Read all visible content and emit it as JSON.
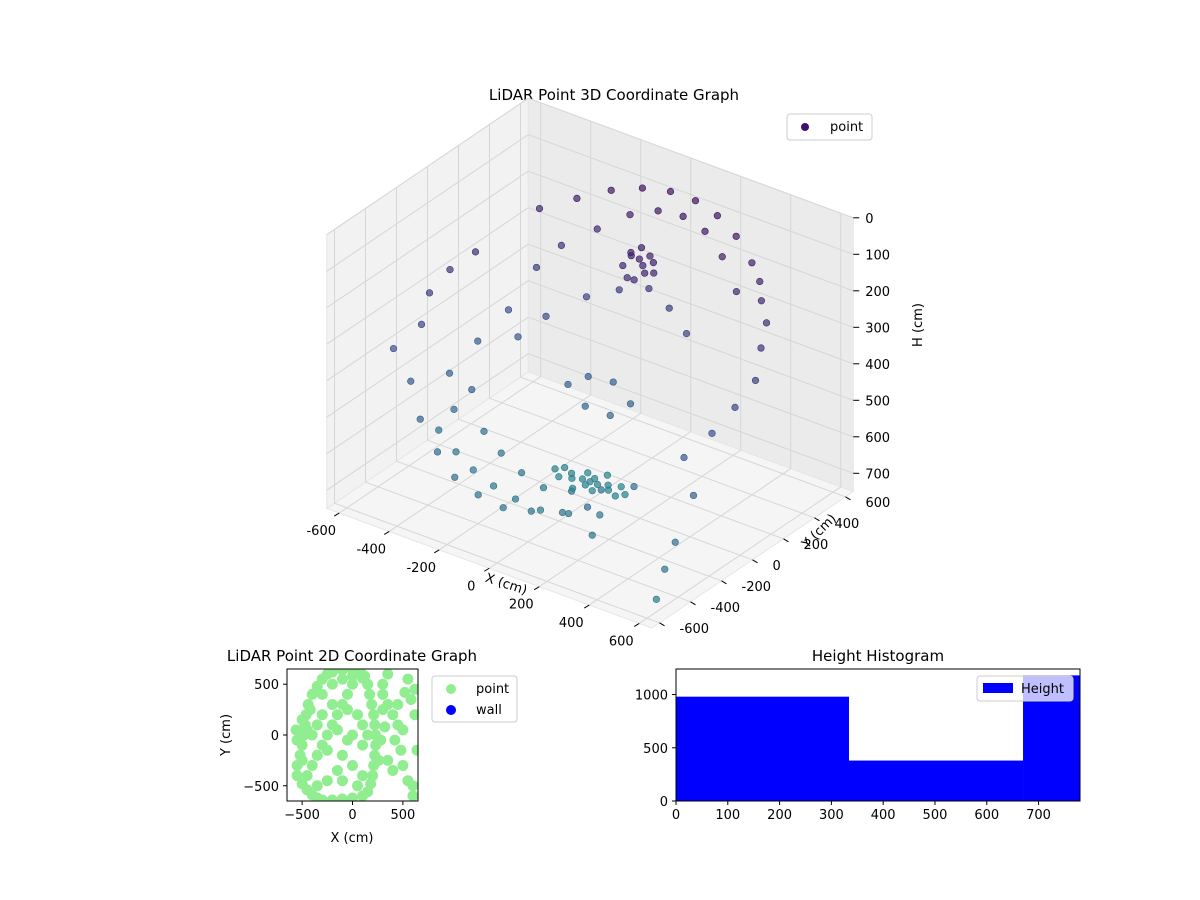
{
  "chart_data": [
    {
      "type": "scatter3d",
      "title": "LiDAR Point 3D Coordinate Graph",
      "xlabel": "X (cm)",
      "ylabel": "Y (cm)",
      "zlabel": "H (cm)",
      "xlim": [
        -650,
        650
      ],
      "ylim": [
        -650,
        650
      ],
      "zlim": [
        0,
        750
      ],
      "z_inverted": true,
      "xticks": [
        -600,
        -400,
        -200,
        0,
        200,
        400,
        600
      ],
      "yticks": [
        -400,
        -200,
        0,
        200,
        400,
        600
      ],
      "ytick_extra": -600,
      "zticks": [
        0,
        100,
        200,
        300,
        400,
        500,
        600,
        700
      ],
      "grid": true,
      "legend": {
        "placement": "top-right",
        "entries": [
          {
            "label": "point",
            "color": "#440f6b"
          }
        ]
      },
      "colormap": "viridis",
      "series": [
        {
          "name": "point",
          "points": [
            [
              -450,
              -250,
              600
            ],
            [
              -350,
              -300,
              620
            ],
            [
              -250,
              -350,
              630
            ],
            [
              -150,
              -380,
              640
            ],
            [
              -50,
              -400,
              645
            ],
            [
              50,
              -400,
              650
            ],
            [
              150,
              -380,
              640
            ],
            [
              250,
              -340,
              630
            ],
            [
              -500,
              -100,
              500
            ],
            [
              -480,
              50,
              450
            ],
            [
              -450,
              200,
              400
            ],
            [
              -400,
              300,
              300
            ],
            [
              -350,
              380,
              250
            ],
            [
              -250,
              450,
              200
            ],
            [
              -150,
              500,
              150
            ],
            [
              -50,
              520,
              120
            ],
            [
              50,
              520,
              110
            ],
            [
              150,
              500,
              120
            ],
            [
              250,
              450,
              150
            ],
            [
              350,
              380,
              200
            ],
            [
              -420,
              -200,
              550
            ],
            [
              -380,
              -150,
              500
            ],
            [
              -300,
              -200,
              580
            ],
            [
              -200,
              -250,
              600
            ],
            [
              -100,
              -280,
              620
            ],
            [
              0,
              -300,
              630
            ],
            [
              100,
              -280,
              620
            ],
            [
              200,
              -250,
              600
            ],
            [
              300,
              -200,
              580
            ],
            [
              -350,
              100,
              420
            ],
            [
              -300,
              200,
              380
            ],
            [
              -200,
              300,
              330
            ],
            [
              -100,
              350,
              300
            ],
            [
              0,
              380,
              280
            ],
            [
              100,
              350,
              300
            ],
            [
              200,
              300,
              330
            ],
            [
              -150,
              100,
              500
            ],
            [
              -100,
              150,
              480
            ],
            [
              0,
              150,
              470
            ],
            [
              100,
              100,
              490
            ],
            [
              -50,
              50,
              520
            ],
            [
              50,
              50,
              520
            ],
            [
              0,
              0,
              700
            ],
            [
              30,
              0,
              700
            ],
            [
              -30,
              0,
              700
            ],
            [
              0,
              30,
              700
            ],
            [
              0,
              -30,
              700
            ],
            [
              60,
              20,
              700
            ],
            [
              -60,
              -20,
              700
            ],
            [
              40,
              -50,
              700
            ],
            [
              -40,
              50,
              700
            ],
            [
              80,
              -10,
              700
            ],
            [
              -80,
              10,
              700
            ],
            [
              100,
              40,
              700
            ],
            [
              -100,
              -40,
              700
            ],
            [
              120,
              -30,
              700
            ],
            [
              -120,
              30,
              700
            ],
            [
              20,
              80,
              700
            ],
            [
              -20,
              -80,
              700
            ],
            [
              140,
              0,
              700
            ],
            [
              -140,
              0,
              700
            ],
            [
              10,
              250,
              150
            ],
            [
              30,
              270,
              160
            ],
            [
              50,
              260,
              170
            ],
            [
              -10,
              280,
              155
            ],
            [
              70,
              240,
              180
            ],
            [
              20,
              300,
              140
            ],
            [
              40,
              220,
              200
            ],
            [
              60,
              290,
              150
            ],
            [
              0,
              240,
              210
            ],
            [
              -30,
              260,
              190
            ],
            [
              80,
              280,
              160
            ],
            [
              100,
              250,
              175
            ],
            [
              500,
              -200,
              450
            ],
            [
              550,
              -100,
              400
            ],
            [
              580,
              0,
              350
            ],
            [
              600,
              100,
              300
            ],
            [
              560,
              200,
              250
            ],
            [
              520,
              300,
              220
            ],
            [
              450,
              380,
              200
            ],
            [
              400,
              450,
              180
            ],
            [
              600,
              -300,
              500
            ],
            [
              620,
              -450,
              580
            ],
            [
              640,
              -550,
              620
            ],
            [
              650,
              -620,
              680
            ],
            [
              300,
              -500,
              550
            ],
            [
              350,
              -550,
              600
            ],
            [
              -550,
              -200,
              350
            ],
            [
              -580,
              -100,
              300
            ],
            [
              -560,
              0,
              260
            ],
            [
              -520,
              100,
              230
            ],
            [
              -600,
              -300,
              400
            ],
            [
              -500,
              -350,
              450
            ],
            [
              -400,
              -450,
              500
            ],
            [
              -300,
              -500,
              550
            ],
            [
              -200,
              -550,
              580
            ],
            [
              -100,
              -560,
              600
            ],
            [
              0,
              -560,
              610
            ],
            [
              100,
              -540,
              600
            ],
            [
              200,
              -500,
              590
            ],
            [
              -450,
              400,
              180
            ],
            [
              -350,
              480,
              150
            ],
            [
              -250,
              540,
              120
            ],
            [
              -150,
              580,
              100
            ],
            [
              -50,
              600,
              90
            ],
            [
              50,
              600,
              90
            ],
            [
              150,
              580,
              100
            ],
            [
              250,
              540,
              120
            ],
            [
              350,
              480,
              150
            ]
          ]
        }
      ]
    },
    {
      "type": "scatter",
      "title": "LiDAR Point 2D Coordinate Graph",
      "xlabel": "X (cm)",
      "ylabel": "Y (cm)",
      "xlim": [
        -650,
        650
      ],
      "ylim": [
        -650,
        650
      ],
      "xticks": [
        -500,
        0,
        500
      ],
      "yticks": [
        -500,
        0,
        500
      ],
      "legend": {
        "placement": "outside-right",
        "entries": [
          {
            "label": "point",
            "color": "#90ee90"
          },
          {
            "label": "wall",
            "color": "#0000ff"
          }
        ]
      },
      "series": [
        {
          "name": "point",
          "color": "#90ee90",
          "points": [
            [
              -550,
              -300
            ],
            [
              -520,
              -200
            ],
            [
              -500,
              -100
            ],
            [
              -480,
              0
            ],
            [
              -470,
              100
            ],
            [
              -460,
              200
            ],
            [
              -440,
              300
            ],
            [
              -400,
              400
            ],
            [
              -350,
              480
            ],
            [
              -300,
              550
            ],
            [
              -250,
              600
            ],
            [
              -550,
              -400
            ],
            [
              -500,
              -480
            ],
            [
              -450,
              -540
            ],
            [
              -400,
              -590
            ],
            [
              -350,
              -620
            ],
            [
              -300,
              -640
            ],
            [
              -200,
              -640
            ],
            [
              -100,
              -630
            ],
            [
              0,
              -620
            ],
            [
              100,
              -600
            ],
            [
              150,
              -560
            ],
            [
              180,
              -480
            ],
            [
              200,
              -400
            ],
            [
              210,
              -300
            ],
            [
              220,
              -200
            ],
            [
              230,
              -100
            ],
            [
              230,
              0
            ],
            [
              220,
              100
            ],
            [
              210,
              200
            ],
            [
              190,
              300
            ],
            [
              170,
              400
            ],
            [
              150,
              500
            ],
            [
              120,
              580
            ],
            [
              80,
              620
            ],
            [
              0,
              640
            ],
            [
              -100,
              640
            ],
            [
              -200,
              620
            ],
            [
              -400,
              -300
            ],
            [
              -350,
              -200
            ],
            [
              -300,
              -100
            ],
            [
              -250,
              0
            ],
            [
              -200,
              100
            ],
            [
              -150,
              200
            ],
            [
              -100,
              300
            ],
            [
              -50,
              400
            ],
            [
              0,
              500
            ],
            [
              -400,
              0
            ],
            [
              -300,
              200
            ],
            [
              -200,
              300
            ],
            [
              -100,
              -200
            ],
            [
              0,
              -300
            ],
            [
              100,
              -400
            ],
            [
              50,
              200
            ],
            [
              100,
              100
            ],
            [
              150,
              0
            ],
            [
              100,
              -100
            ],
            [
              -50,
              -50
            ],
            [
              0,
              0
            ],
            [
              -150,
              -350
            ],
            [
              -250,
              -450
            ],
            [
              -350,
              -500
            ],
            [
              -450,
              -400
            ],
            [
              -500,
              -250
            ],
            [
              -550,
              -50
            ],
            [
              -560,
              50
            ],
            [
              -500,
              150
            ],
            [
              -420,
              250
            ],
            [
              -300,
              400
            ],
            [
              -200,
              500
            ],
            [
              -100,
              550
            ],
            [
              0,
              580
            ],
            [
              100,
              560
            ],
            [
              -50,
              250
            ],
            [
              -150,
              50
            ],
            [
              -250,
              -150
            ],
            [
              -350,
              100
            ],
            [
              -450,
              50
            ],
            [
              -100,
              -450
            ],
            [
              50,
              -500
            ],
            [
              300,
              400
            ],
            [
              350,
              300
            ],
            [
              300,
              250
            ],
            [
              400,
              200
            ],
            [
              450,
              100
            ],
            [
              500,
              50
            ],
            [
              420,
              -50
            ],
            [
              480,
              -150
            ],
            [
              350,
              -250
            ],
            [
              400,
              -350
            ],
            [
              500,
              -300
            ],
            [
              550,
              -450
            ],
            [
              600,
              -500
            ],
            [
              520,
              420
            ],
            [
              580,
              350
            ],
            [
              620,
              200
            ],
            [
              640,
              -150
            ],
            [
              600,
              -600
            ],
            [
              280,
              -50
            ],
            [
              320,
              80
            ],
            [
              260,
              -250
            ],
            [
              300,
              500
            ],
            [
              350,
              600
            ],
            [
              450,
              300
            ],
            [
              550,
              550
            ],
            [
              620,
              450
            ]
          ]
        },
        {
          "name": "wall",
          "color": "#0000ff",
          "points": []
        }
      ]
    },
    {
      "type": "bar",
      "title": "Height Histogram",
      "xlim": [
        0,
        780
      ],
      "ylim": [
        0,
        1240
      ],
      "xticks": [
        0,
        100,
        200,
        300,
        400,
        500,
        600,
        700
      ],
      "yticks": [
        0,
        500,
        1000
      ],
      "legend": {
        "placement": "top-right",
        "entries": [
          {
            "label": "Height",
            "color": "#0000ff"
          }
        ]
      },
      "bins": [
        {
          "x0": 0,
          "x1": 334,
          "count": 980
        },
        {
          "x0": 334,
          "x1": 670,
          "count": 380
        },
        {
          "x0": 670,
          "x1": 780,
          "count": 1180
        }
      ],
      "color": "#0000ff"
    }
  ]
}
